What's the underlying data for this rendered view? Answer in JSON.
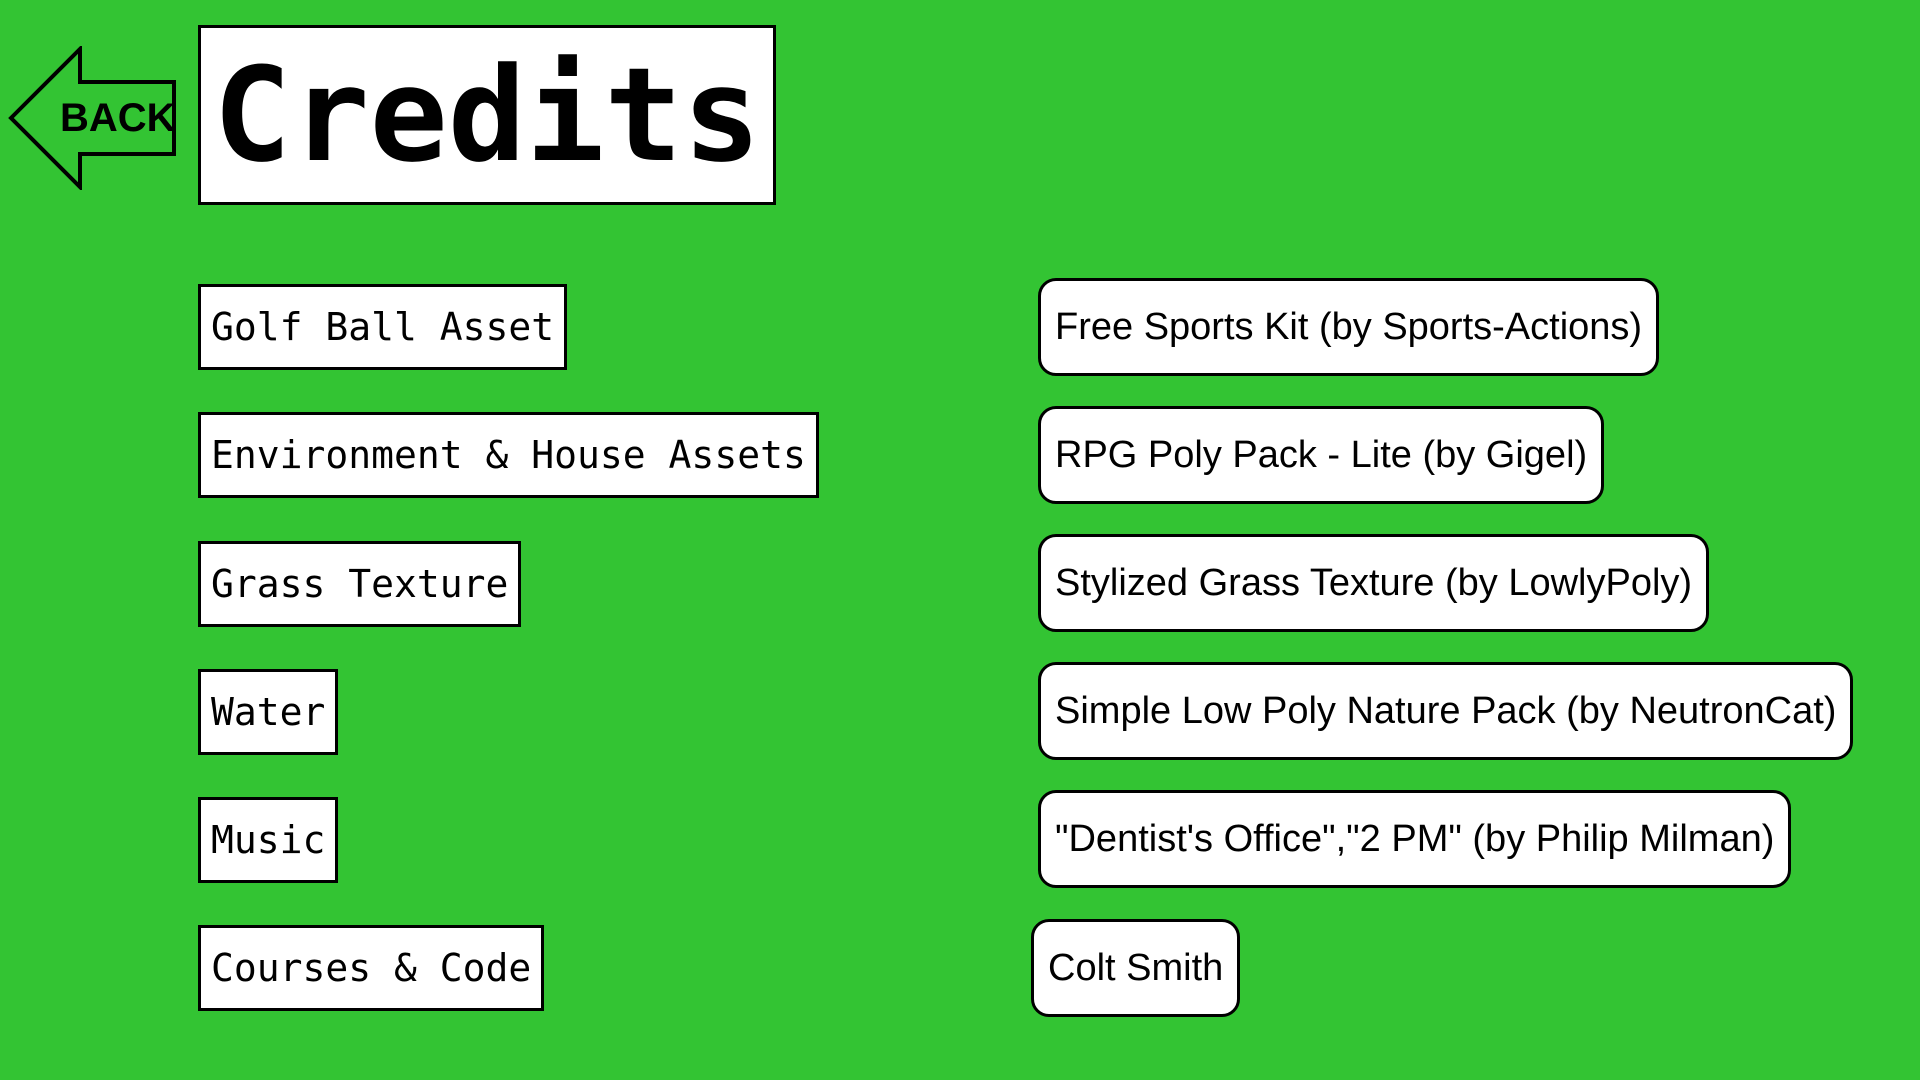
{
  "back_label": "BACK",
  "title": "Credits",
  "colors": {
    "background": "#33c433",
    "panel": "#ffffff",
    "border": "#000000"
  },
  "categories": [
    "Golf Ball Asset",
    "Environment & House Assets",
    "Grass Texture",
    "Water",
    "Music",
    "Courses & Code"
  ],
  "credits": [
    "Free Sports Kit (by Sports-Actions)",
    "RPG Poly Pack - Lite (by Gigel)",
    "Stylized Grass Texture (by LowlyPoly)",
    "Simple Low Poly Nature Pack (by NeutronCat)",
    "\"Dentist's Office\",\"2 PM\" (by Philip Milman)",
    "Colt Smith"
  ]
}
